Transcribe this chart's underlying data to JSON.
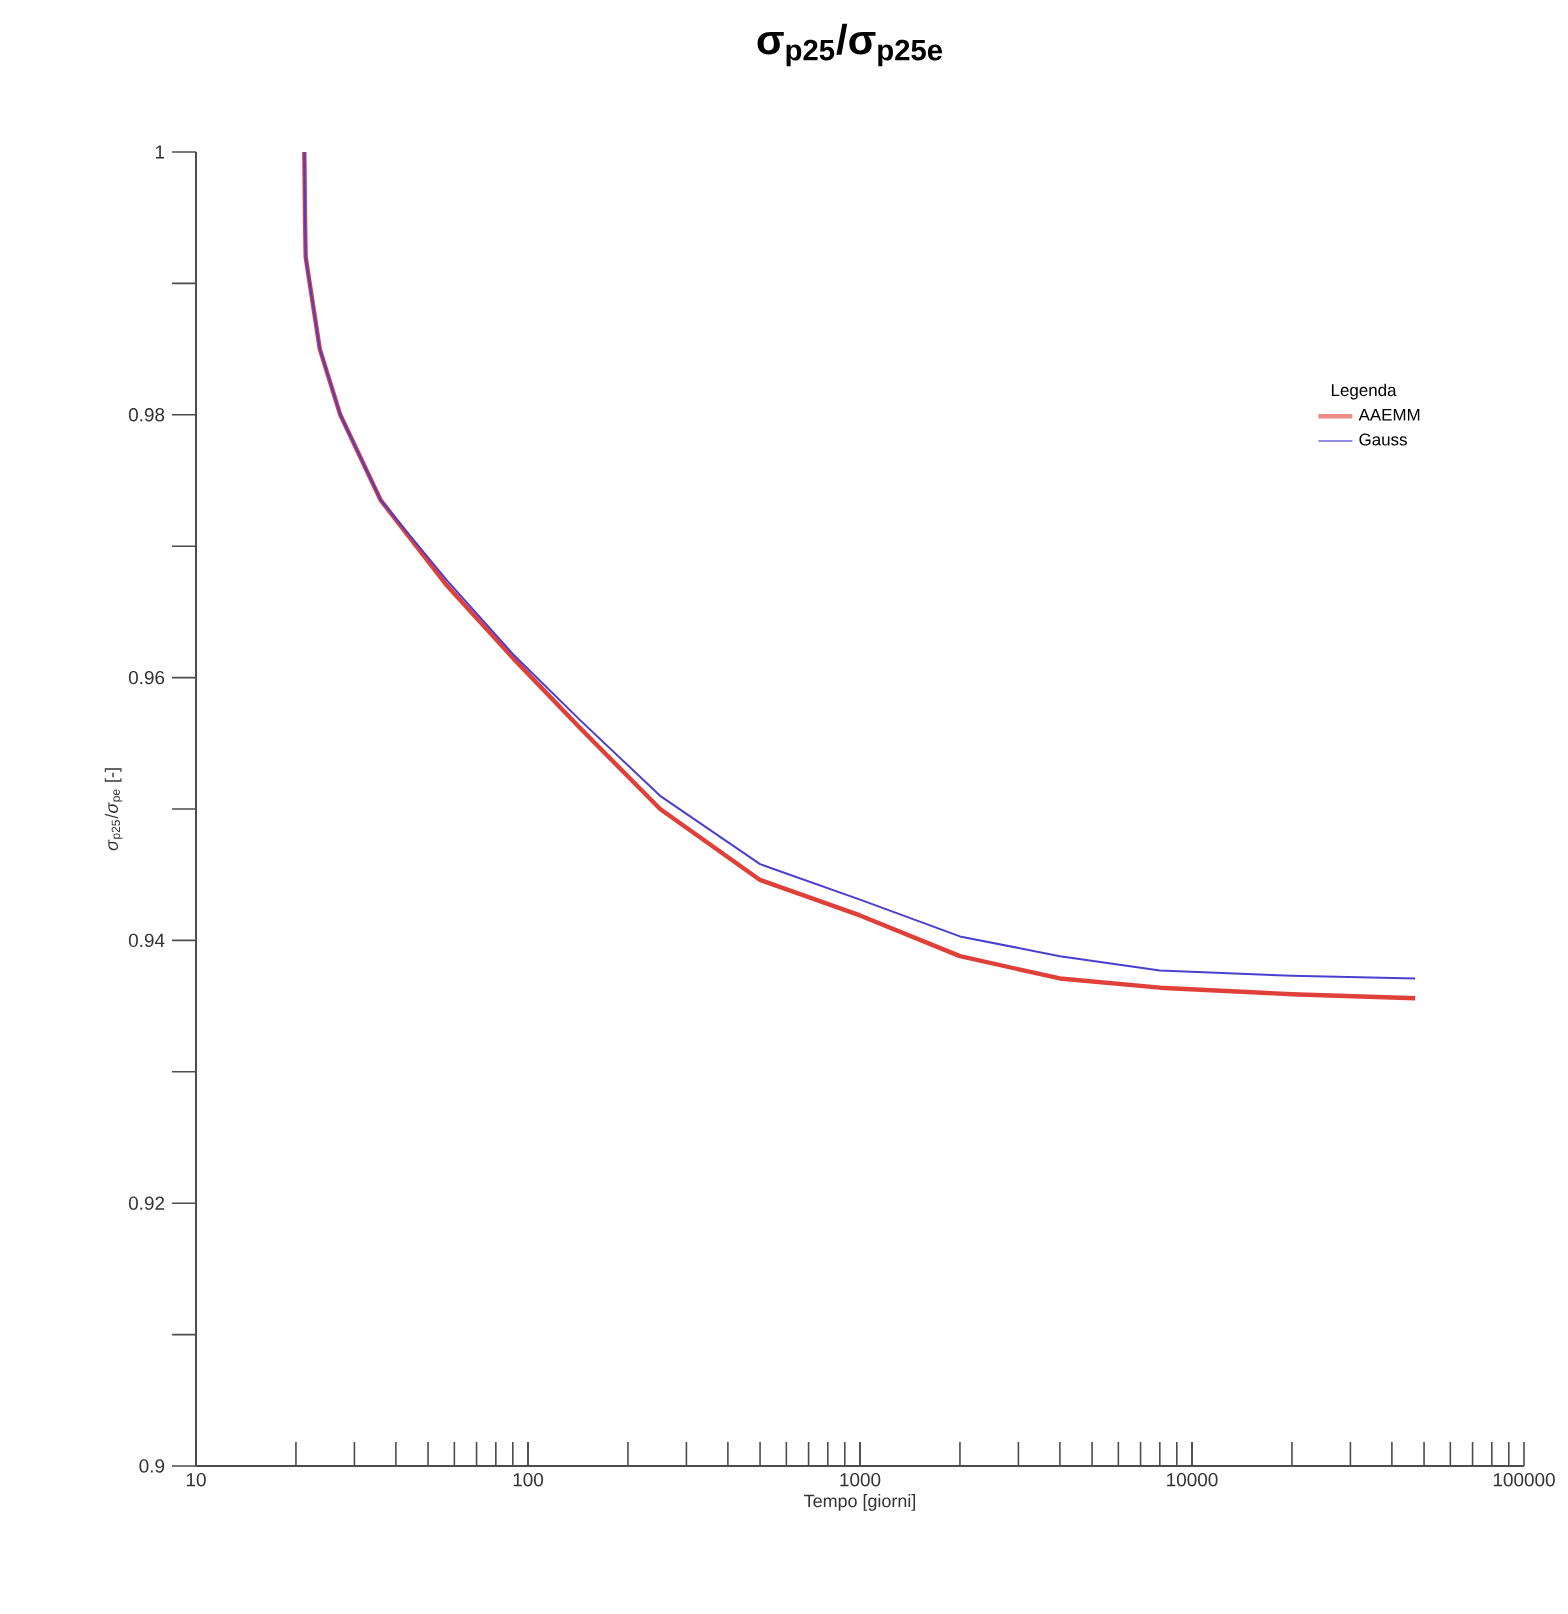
{
  "chart_data": {
    "type": "line",
    "title": "σ$_{p25}$/σ$_{p25e}$",
    "xlabel": "Tempo [giorni]",
    "ylabel": "*σ*$_{p25}$/*σ*$_{pe}$ [-]",
    "legend_title": "Legenda",
    "log": "x",
    "x": [
      21.2,
      21.3,
      21.4,
      23.6,
      27.2,
      36,
      57,
      90,
      143,
      250,
      500,
      1000,
      2000,
      4000,
      8000,
      20000,
      47000
    ],
    "series": [
      {
        "name": "AAEMM",
        "color": "#e0403a",
        "values": [
          1.0,
          0.995,
          0.992,
          0.985,
          0.98,
          0.9735,
          0.967,
          0.9615,
          0.9562,
          0.95,
          0.9446,
          0.9419,
          0.9388,
          0.9371,
          0.9364,
          0.9359,
          0.9356
        ]
      },
      {
        "name": "Gauss",
        "color": "#4a3fcf",
        "values": [
          1.0,
          0.995,
          0.992,
          0.985,
          0.98,
          0.9735,
          0.9674,
          0.9618,
          0.9568,
          0.951,
          0.9458,
          0.9431,
          0.9403,
          0.9388,
          0.9377,
          0.9373,
          0.9371
        ]
      }
    ],
    "xlim": [
      10,
      100000
    ],
    "ylim": [
      0.9,
      1
    ],
    "xticks": [
      10,
      100,
      1000,
      10000,
      100000
    ],
    "yticks": [
      0.9,
      {
        "value": 0.91,
        "label": null
      },
      0.92,
      {
        "value": 0.93,
        "label": null
      },
      0.94,
      {
        "value": 0.95,
        "label": null
      },
      0.96,
      {
        "value": 0.97,
        "label": null
      },
      0.98,
      {
        "value": 0.99,
        "label": null
      },
      1
    ],
    "grid": false,
    "legend": "top right",
    "marker": "none",
    "line_style": "solid"
  }
}
